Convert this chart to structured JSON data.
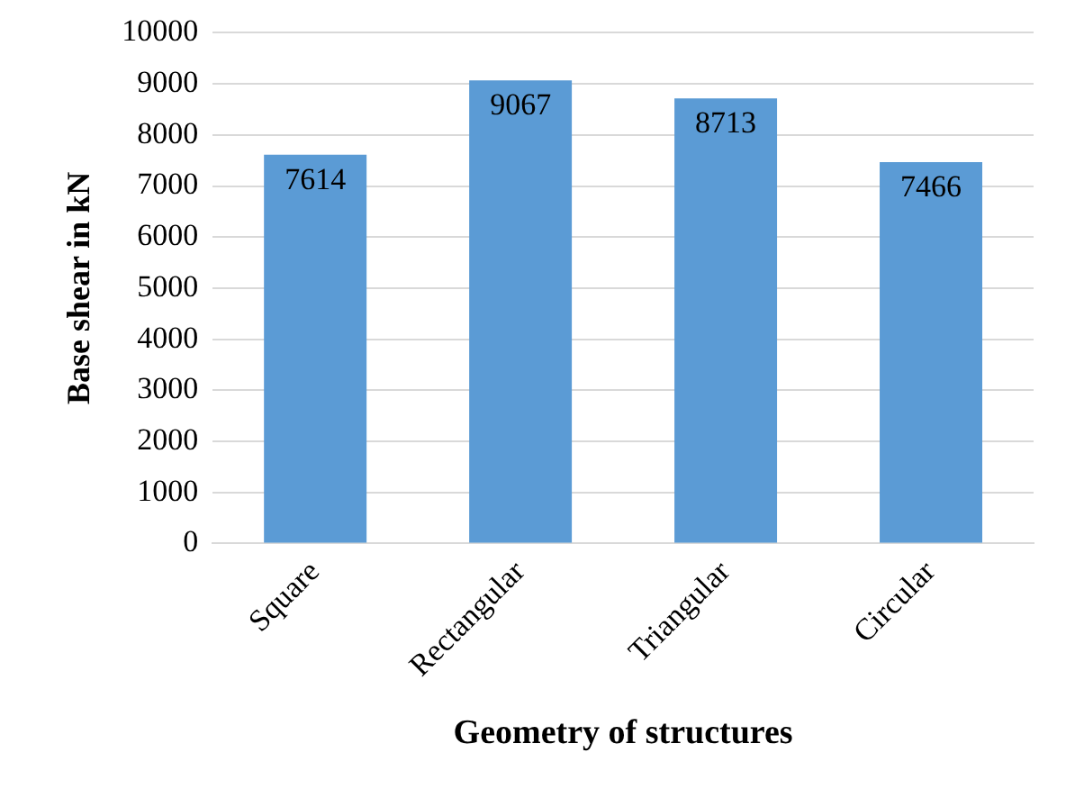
{
  "chart_data": {
    "type": "bar",
    "xlabel": "Geometry of structures",
    "ylabel": "Base shear in kN",
    "categories": [
      "Square",
      "Rectangular",
      "Triangular",
      "Circular"
    ],
    "values": [
      7614,
      9067,
      8713,
      7466
    ],
    "color": "#5b9bd5",
    "ylim": [
      0,
      10000
    ],
    "yticks": [
      0,
      1000,
      2000,
      3000,
      4000,
      5000,
      6000,
      7000,
      8000,
      9000,
      10000
    ],
    "grid": "y",
    "legend": false,
    "data_labels": true
  }
}
